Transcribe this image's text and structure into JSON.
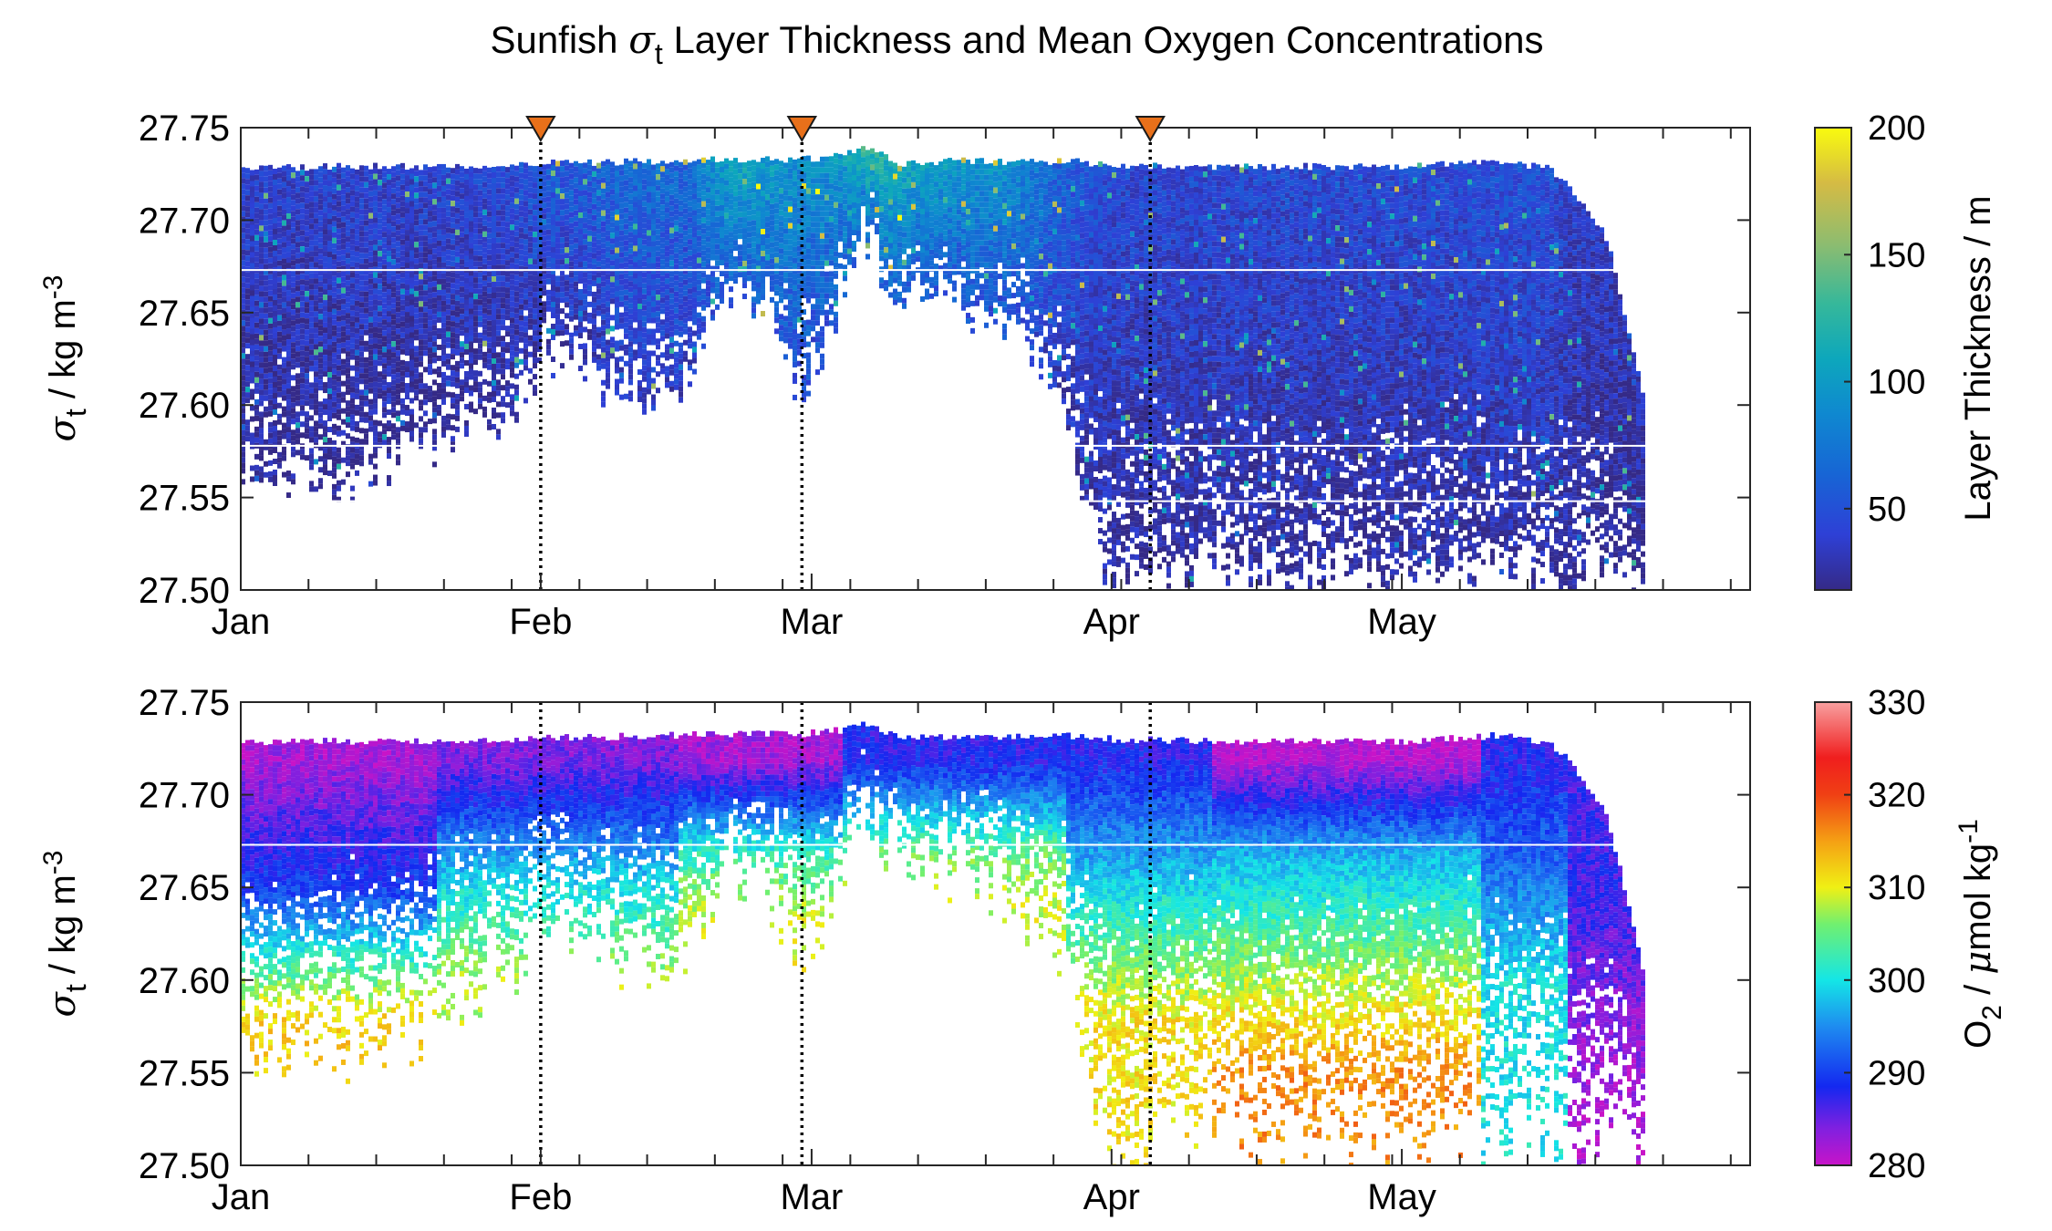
{
  "chart_data": [
    {
      "type": "heatmap",
      "panel": "top",
      "title": "Sunfish σt Layer Thickness and Mean Oxygen Concentrations",
      "xlabel": "",
      "ylabel": "σt / kg m-3",
      "ylim": [
        27.5,
        27.75
      ],
      "y_ticks": [
        "27.75",
        "27.70",
        "27.65",
        "27.60",
        "27.55",
        "27.50"
      ],
      "x_ticks": [
        "Jan",
        "Feb",
        "Mar",
        "Apr",
        "May"
      ],
      "xlim_days": [
        0,
        156
      ],
      "colorbar": {
        "label": "Layer Thickness / m",
        "ticks": [
          "200",
          "150",
          "100",
          "50"
        ],
        "range": [
          18,
          200
        ],
        "colormap": "parula"
      },
      "markers": {
        "shape": "inverted-triangle",
        "color": "#e8701a",
        "days": [
          31,
          58,
          94
        ]
      },
      "dotted_lines_days": [
        31,
        58,
        94
      ],
      "white_lines_sigma": [
        27.673,
        27.578,
        27.548
      ],
      "coverage": [
        {
          "day": 0,
          "top": 27.728,
          "bottom": 27.56,
          "mean": 40
        },
        {
          "day": 10,
          "top": 27.729,
          "bottom": 27.56,
          "mean": 40
        },
        {
          "day": 20,
          "top": 27.729,
          "bottom": 27.58,
          "mean": 42
        },
        {
          "day": 28,
          "top": 27.729,
          "bottom": 27.6,
          "mean": 45
        },
        {
          "day": 31,
          "top": 27.731,
          "bottom": 27.63,
          "mean": 55
        },
        {
          "day": 36,
          "top": 27.731,
          "bottom": 27.62,
          "mean": 60
        },
        {
          "day": 42,
          "top": 27.732,
          "bottom": 27.6,
          "mean": 70
        },
        {
          "day": 46,
          "top": 27.732,
          "bottom": 27.61,
          "mean": 65
        },
        {
          "day": 48,
          "top": 27.733,
          "bottom": 27.64,
          "mean": 90
        },
        {
          "day": 51,
          "top": 27.733,
          "bottom": 27.66,
          "mean": 110
        },
        {
          "day": 55,
          "top": 27.733,
          "bottom": 27.64,
          "mean": 100
        },
        {
          "day": 58,
          "top": 27.733,
          "bottom": 27.61,
          "mean": 90
        },
        {
          "day": 62,
          "top": 27.735,
          "bottom": 27.66,
          "mean": 100
        },
        {
          "day": 64,
          "top": 27.74,
          "bottom": 27.7,
          "mean": 130
        },
        {
          "day": 68,
          "top": 27.73,
          "bottom": 27.66,
          "mean": 110
        },
        {
          "day": 74,
          "top": 27.732,
          "bottom": 27.66,
          "mean": 100
        },
        {
          "day": 80,
          "top": 27.731,
          "bottom": 27.64,
          "mean": 90
        },
        {
          "day": 85,
          "top": 27.732,
          "bottom": 27.6,
          "mean": 60
        },
        {
          "day": 90,
          "top": 27.73,
          "bottom": 27.5,
          "mean": 45
        },
        {
          "day": 100,
          "top": 27.729,
          "bottom": 27.52,
          "mean": 45
        },
        {
          "day": 110,
          "top": 27.729,
          "bottom": 27.51,
          "mean": 45
        },
        {
          "day": 120,
          "top": 27.729,
          "bottom": 27.51,
          "mean": 45
        },
        {
          "day": 130,
          "top": 27.732,
          "bottom": 27.52,
          "mean": 50
        },
        {
          "day": 135,
          "top": 27.728,
          "bottom": 27.51,
          "mean": 50
        },
        {
          "day": 137,
          "top": 27.72,
          "bottom": 27.5,
          "mean": 40
        },
        {
          "day": 141,
          "top": 27.69,
          "bottom": 27.52,
          "mean": 35
        },
        {
          "day": 145,
          "top": 27.6,
          "bottom": 27.5,
          "mean": 30
        }
      ]
    },
    {
      "type": "heatmap",
      "panel": "bottom",
      "xlabel": "",
      "ylabel": "σt / kg m-3",
      "ylim": [
        27.5,
        27.75
      ],
      "y_ticks": [
        "27.75",
        "27.70",
        "27.65",
        "27.60",
        "27.55",
        "27.50"
      ],
      "x_ticks": [
        "Jan",
        "Feb",
        "Mar",
        "Apr",
        "May"
      ],
      "xlim_days": [
        0,
        156
      ],
      "colorbar": {
        "label": "O2 / μmol kg-1",
        "ticks": [
          "330",
          "320",
          "310",
          "300",
          "290",
          "280"
        ],
        "range": [
          280,
          330
        ],
        "colormap": "magenta-blue-cyan-green-yellow-orange-red-pink"
      },
      "dotted_lines_days": [
        31,
        58,
        94
      ],
      "white_lines_sigma": [
        27.673
      ],
      "profile_by_period": [
        {
          "days": [
            0,
            20
          ],
          "o2_at_27.72": 282,
          "o2_at_27.65": 290,
          "o2_at_27.58": 312
        },
        {
          "days": [
            20,
            45
          ],
          "o2_at_27.72": 284,
          "o2_at_27.65": 300,
          "o2_at_27.60": 308
        },
        {
          "days": [
            45,
            62
          ],
          "o2_at_27.72": 282,
          "o2_at_27.67": 302,
          "o2_at_27.63": 310
        },
        {
          "days": [
            62,
            85
          ],
          "o2_at_27.72": 288,
          "o2_at_27.67": 305,
          "o2_at_27.64": 309
        },
        {
          "days": [
            85,
            100
          ],
          "o2_at_27.72": 288,
          "o2_at_27.67": 296,
          "o2_at_27.58": 311
        },
        {
          "days": [
            100,
            128
          ],
          "o2_at_27.72": 281,
          "o2_at_27.67": 297,
          "o2_at_27.55": 316
        },
        {
          "days": [
            128,
            137
          ],
          "o2_at_27.72": 288,
          "o2_at_27.67": 292,
          "o2_at_27.60": 300
        },
        {
          "days": [
            137,
            146
          ],
          "o2_at_27.65": 287,
          "o2_at_27.57": 283,
          "o2_at_27.52": 281
        }
      ]
    }
  ]
}
